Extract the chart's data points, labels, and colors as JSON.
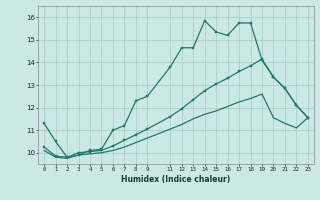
{
  "xlabel": "Humidex (Indice chaleur)",
  "background_color": "#cce8e4",
  "grid_color": "#aacfcb",
  "line_color": "#1a7a6e",
  "xlim": [
    -0.5,
    23.5
  ],
  "ylim": [
    9.5,
    16.5
  ],
  "yticks": [
    10,
    11,
    12,
    13,
    14,
    15,
    16
  ],
  "xtick_positions": [
    0,
    1,
    2,
    3,
    4,
    5,
    6,
    7,
    8,
    9,
    11,
    12,
    13,
    14,
    15,
    16,
    17,
    18,
    19,
    20,
    21,
    22,
    23
  ],
  "xtick_labels": [
    "0",
    "1",
    "2",
    "3",
    "4",
    "5",
    "6",
    "7",
    "8",
    "9",
    "11",
    "12",
    "13",
    "14",
    "15",
    "16",
    "17",
    "18",
    "19",
    "20",
    "21",
    "22",
    "23"
  ],
  "series1_x": [
    0,
    1,
    2,
    3,
    4,
    5,
    6,
    7,
    8,
    9,
    11,
    12,
    13,
    14,
    15,
    16,
    17,
    18,
    19,
    20,
    21,
    22,
    23
  ],
  "series1_y": [
    11.3,
    10.5,
    9.8,
    9.9,
    10.1,
    10.15,
    11.0,
    11.2,
    12.3,
    12.5,
    13.8,
    14.65,
    14.65,
    15.85,
    15.35,
    15.2,
    15.75,
    15.75,
    14.1,
    13.35,
    12.85,
    12.1,
    11.55
  ],
  "series2_x": [
    0,
    1,
    2,
    3,
    4,
    5,
    6,
    7,
    8,
    9,
    11,
    12,
    13,
    14,
    15,
    16,
    17,
    18,
    19,
    20,
    21,
    22,
    23
  ],
  "series2_y": [
    10.25,
    9.85,
    9.8,
    10.0,
    10.05,
    10.1,
    10.3,
    10.55,
    10.8,
    11.05,
    11.6,
    11.95,
    12.35,
    12.75,
    13.05,
    13.3,
    13.6,
    13.85,
    14.15,
    13.35,
    12.85,
    12.1,
    11.55
  ],
  "series3_x": [
    0,
    1,
    2,
    3,
    4,
    5,
    6,
    7,
    8,
    9,
    11,
    12,
    13,
    14,
    15,
    16,
    17,
    18,
    19,
    20,
    21,
    22,
    23
  ],
  "series3_y": [
    10.1,
    9.8,
    9.75,
    9.9,
    9.95,
    10.0,
    10.1,
    10.25,
    10.45,
    10.65,
    11.05,
    11.25,
    11.5,
    11.7,
    11.85,
    12.05,
    12.25,
    12.4,
    12.6,
    11.55,
    11.3,
    11.1,
    11.55
  ]
}
